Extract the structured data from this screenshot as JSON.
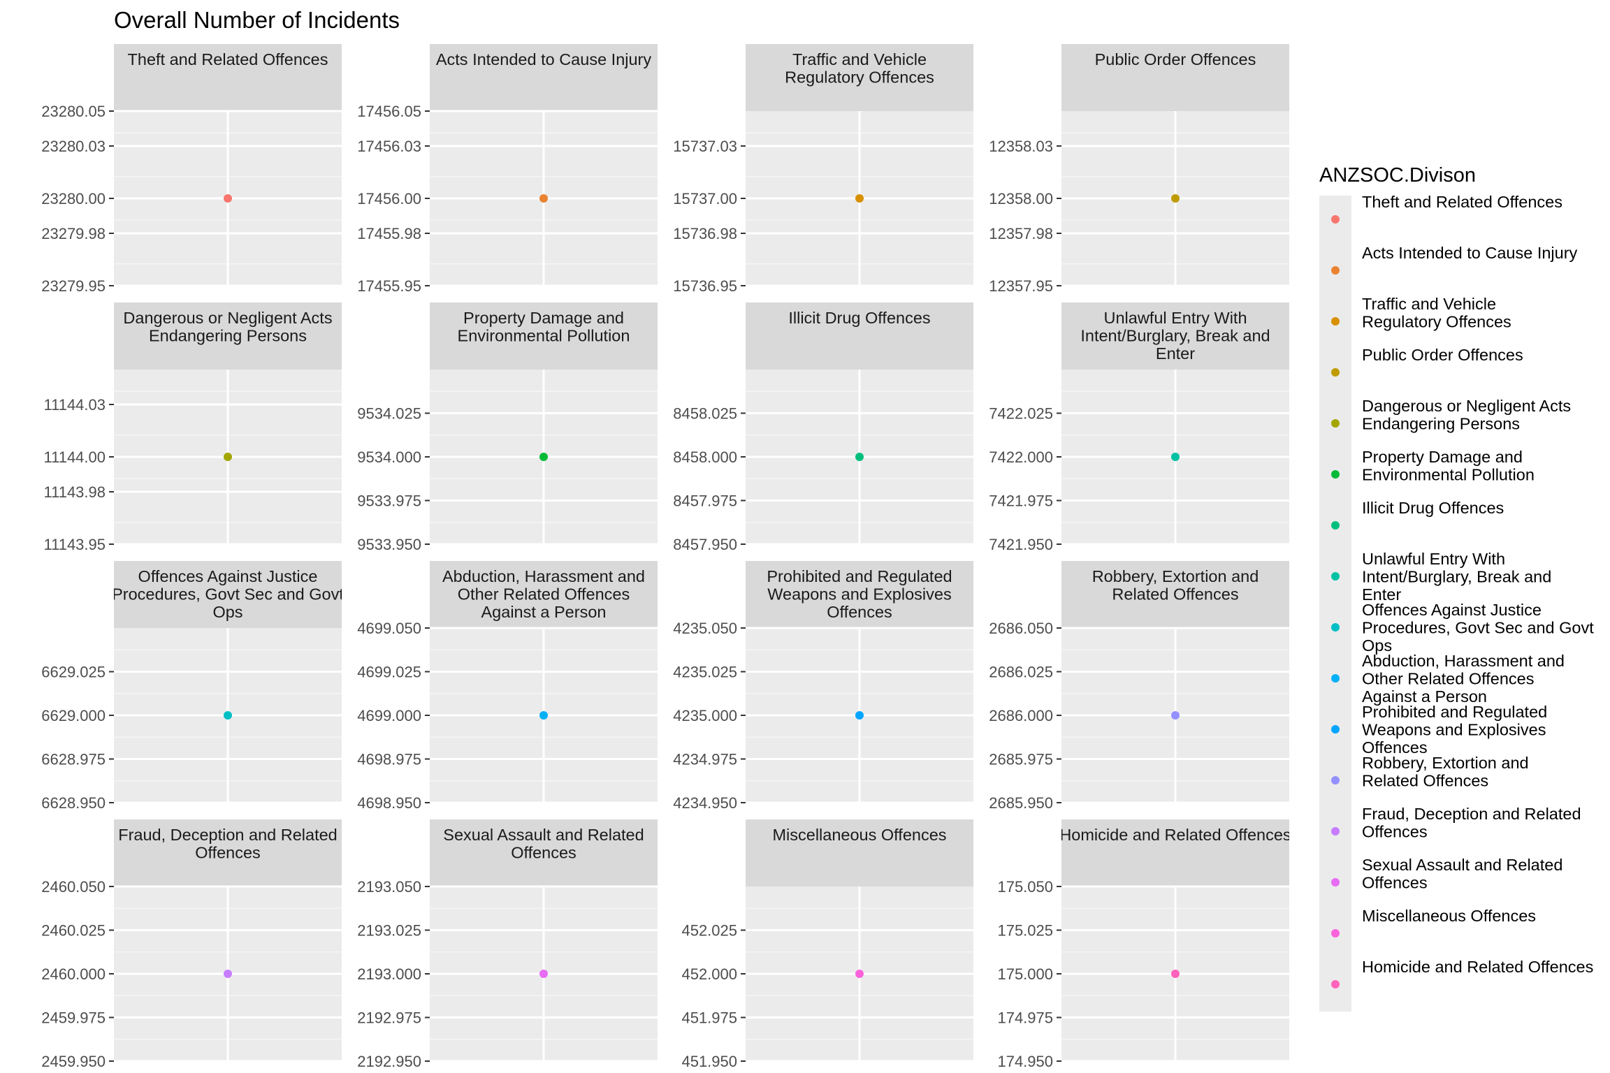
{
  "chart_data": {
    "type": "scatter",
    "title": "Overall Number of Incidents",
    "xlabel": "",
    "ylabel": "",
    "legend_title": "ANZSOC.Divison",
    "legend_position": "right",
    "grid": true,
    "facets": [
      {
        "name": "Theft and Related Offences",
        "strip": [
          "Theft and Related Offences"
        ],
        "value": 23280,
        "color": "#F8766D",
        "ylim": [
          23279.95,
          23280.05
        ],
        "ticks": [
          "23279.95",
          "23279.98",
          "23280.00",
          "23280.03",
          "23280.05"
        ]
      },
      {
        "name": "Acts Intended to Cause Injury",
        "strip": [
          "Acts Intended to Cause Injury"
        ],
        "value": 17456,
        "color": "#EA8331",
        "ylim": [
          17455.95,
          17456.05
        ],
        "ticks": [
          "17455.95",
          "17455.98",
          "17456.00",
          "17456.03",
          "17456.05"
        ]
      },
      {
        "name": "Traffic and Vehicle Regulatory Offences",
        "strip": [
          "Traffic and Vehicle",
          "Regulatory Offences"
        ],
        "value": 15737,
        "color": "#D89000",
        "ylim": [
          15736.95,
          15737.05
        ],
        "ticks": [
          "15736.95",
          "15736.98",
          "15737.00",
          "15737.03"
        ]
      },
      {
        "name": "Public Order Offences",
        "strip": [
          "Public Order Offences"
        ],
        "value": 12358,
        "color": "#C09B00",
        "ylim": [
          12357.95,
          12358.05
        ],
        "ticks": [
          "12357.95",
          "12357.98",
          "12358.00",
          "12358.03"
        ]
      },
      {
        "name": "Dangerous or Negligent Acts Endangering Persons",
        "strip": [
          "Dangerous or Negligent Acts",
          "Endangering Persons"
        ],
        "value": 11144,
        "color": "#A3A500",
        "ylim": [
          11143.95,
          11144.05
        ],
        "ticks": [
          "11143.95",
          "11143.98",
          "11144.00",
          "11144.03"
        ]
      },
      {
        "name": "Property Damage and Environmental Pollution",
        "strip": [
          "Property Damage and",
          "Environmental Pollution"
        ],
        "value": 9534,
        "color": "#00BA38",
        "ylim": [
          9533.95,
          9534.05
        ],
        "ticks": [
          "9533.950",
          "9533.975",
          "9534.000",
          "9534.025"
        ]
      },
      {
        "name": "Illicit Drug Offences",
        "strip": [
          "Illicit Drug Offences"
        ],
        "value": 8458,
        "color": "#00BF7D",
        "ylim": [
          8457.95,
          8458.05
        ],
        "ticks": [
          "8457.950",
          "8457.975",
          "8458.000",
          "8458.025"
        ]
      },
      {
        "name": "Unlawful Entry With Intent/Burglary, Break and Enter",
        "strip": [
          "Unlawful Entry With",
          "Intent/Burglary, Break and",
          "Enter"
        ],
        "value": 7422,
        "color": "#00C1A3",
        "ylim": [
          7421.95,
          7422.05
        ],
        "ticks": [
          "7421.950",
          "7421.975",
          "7422.000",
          "7422.025"
        ]
      },
      {
        "name": "Offences Against Justice Procedures, Govt Sec and Govt Ops",
        "strip": [
          "Offences Against Justice",
          "Procedures, Govt Sec and Govt",
          "Ops"
        ],
        "value": 6629,
        "color": "#00BFC4",
        "ylim": [
          6628.95,
          6629.05
        ],
        "ticks": [
          "6628.950",
          "6628.975",
          "6629.000",
          "6629.025"
        ]
      },
      {
        "name": "Abduction, Harassment and Other Related Offences Against a Person",
        "strip": [
          "Abduction, Harassment and",
          "Other Related Offences",
          "Against a Person"
        ],
        "value": 4699,
        "color": "#00B0F6",
        "ylim": [
          4698.95,
          4699.05
        ],
        "ticks": [
          "4698.950",
          "4698.975",
          "4699.000",
          "4699.025",
          "4699.050"
        ]
      },
      {
        "name": "Prohibited and Regulated Weapons and Explosives Offences",
        "strip": [
          "Prohibited and Regulated",
          "Weapons and Explosives",
          "Offences"
        ],
        "value": 4235,
        "color": "#00A5FF",
        "ylim": [
          4234.95,
          4235.05
        ],
        "ticks": [
          "4234.950",
          "4234.975",
          "4235.000",
          "4235.025",
          "4235.050"
        ]
      },
      {
        "name": "Robbery, Extortion and Related Offences",
        "strip": [
          "Robbery, Extortion and",
          "Related Offences"
        ],
        "value": 2686,
        "color": "#9590FF",
        "ylim": [
          2685.95,
          2686.05
        ],
        "ticks": [
          "2685.950",
          "2685.975",
          "2686.000",
          "2686.025",
          "2686.050"
        ]
      },
      {
        "name": "Fraud, Deception and Related Offences",
        "strip": [
          "Fraud, Deception and Related",
          "Offences"
        ],
        "value": 2460,
        "color": "#C77CFF",
        "ylim": [
          2459.95,
          2460.05
        ],
        "ticks": [
          "2459.950",
          "2459.975",
          "2460.000",
          "2460.025",
          "2460.050"
        ]
      },
      {
        "name": "Sexual Assault and Related Offences",
        "strip": [
          "Sexual Assault and Related",
          "Offences"
        ],
        "value": 2193,
        "color": "#E76BF3",
        "ylim": [
          2192.95,
          2193.05
        ],
        "ticks": [
          "2192.950",
          "2192.975",
          "2193.000",
          "2193.025",
          "2193.050"
        ]
      },
      {
        "name": "Miscellaneous Offences",
        "strip": [
          "Miscellaneous Offences"
        ],
        "value": 452,
        "color": "#FA62DB",
        "ylim": [
          451.95,
          452.05
        ],
        "ticks": [
          "451.950",
          "451.975",
          "452.000",
          "452.025"
        ]
      },
      {
        "name": "Homicide and Related Offences",
        "strip": [
          "Homicide and Related Offences"
        ],
        "value": 175,
        "color": "#FF62BC",
        "ylim": [
          174.95,
          175.05
        ],
        "ticks": [
          "174.950",
          "174.975",
          "175.000",
          "175.025",
          "175.050"
        ]
      }
    ],
    "legend": [
      {
        "label": [
          "Theft and Related Offences"
        ],
        "color": "#F8766D"
      },
      {
        "label": [
          "Acts Intended to Cause Injury"
        ],
        "color": "#EA8331"
      },
      {
        "label": [
          "Traffic and Vehicle",
          "Regulatory Offences"
        ],
        "color": "#D89000"
      },
      {
        "label": [
          "Public Order Offences"
        ],
        "color": "#C09B00"
      },
      {
        "label": [
          "Dangerous or Negligent Acts",
          "Endangering Persons"
        ],
        "color": "#A3A500"
      },
      {
        "label": [
          "Property Damage and",
          "Environmental Pollution"
        ],
        "color": "#00BA38"
      },
      {
        "label": [
          "Illicit Drug Offences"
        ],
        "color": "#00BF7D"
      },
      {
        "label": [
          "Unlawful Entry With",
          "Intent/Burglary, Break and",
          "Enter"
        ],
        "color": "#00C1A3"
      },
      {
        "label": [
          "Offences Against Justice",
          "Procedures, Govt Sec and Govt",
          "Ops"
        ],
        "color": "#00BFC4"
      },
      {
        "label": [
          "Abduction, Harassment and",
          "Other Related Offences",
          "Against a Person"
        ],
        "color": "#00B0F6"
      },
      {
        "label": [
          "Prohibited and Regulated",
          "Weapons and Explosives",
          "Offences"
        ],
        "color": "#00A5FF"
      },
      {
        "label": [
          "Robbery, Extortion and",
          "Related Offences"
        ],
        "color": "#9590FF"
      },
      {
        "label": [
          "Fraud, Deception and Related",
          "Offences"
        ],
        "color": "#C77CFF"
      },
      {
        "label": [
          "Sexual Assault and Related",
          "Offences"
        ],
        "color": "#E76BF3"
      },
      {
        "label": [
          "Miscellaneous Offences"
        ],
        "color": "#FA62DB"
      },
      {
        "label": [
          "Homicide and Related Offences"
        ],
        "color": "#FF62BC"
      }
    ]
  }
}
